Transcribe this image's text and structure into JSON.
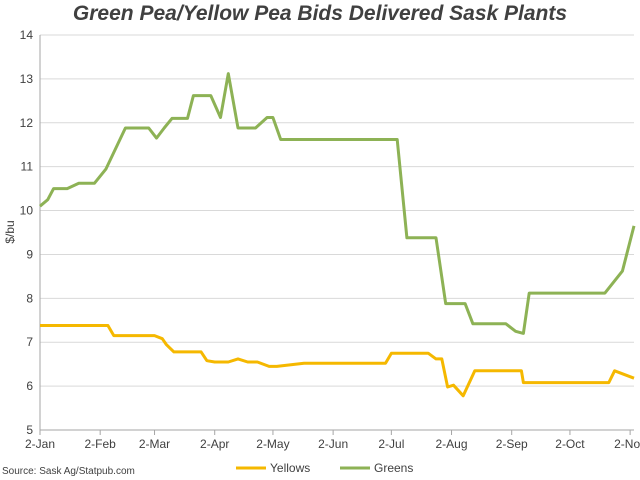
{
  "chart_data": {
    "type": "line",
    "title": "Green Pea/Yellow Pea Bids Delivered Sask Plants",
    "xlabel": "",
    "ylabel": "$/bu",
    "ylim": [
      5,
      14
    ],
    "yticks": [
      5,
      6,
      7,
      8,
      9,
      10,
      11,
      12,
      13,
      14
    ],
    "xlim": [
      0,
      306
    ],
    "xtick_labels": [
      "2-Jan",
      "2-Feb",
      "2-Mar",
      "2-Apr",
      "2-May",
      "2-Jun",
      "2-Jul",
      "2-Aug",
      "2-Sep",
      "2-Oct",
      "2-Nov"
    ],
    "xtick_days": [
      0,
      31,
      59,
      90,
      120,
      151,
      181,
      212,
      243,
      273,
      304
    ],
    "grid": "horizontal",
    "legend": "bottom-center",
    "source": "Source: Sask Ag/Statpub.com",
    "series": [
      {
        "name": "Yellows",
        "color": "#F5B800",
        "x": [
          0,
          35,
          38,
          59,
          63,
          65,
          69,
          83,
          86,
          90,
          92,
          97,
          102,
          107,
          112,
          118,
          122,
          136,
          141,
          178,
          181,
          185,
          196,
          197,
          200,
          204,
          207,
          210,
          213,
          218,
          224,
          238,
          243,
          248,
          249,
          270,
          293,
          296,
          306
        ],
        "y": [
          7.38,
          7.38,
          7.15,
          7.15,
          7.08,
          6.95,
          6.78,
          6.78,
          6.58,
          6.55,
          6.55,
          6.55,
          6.62,
          6.55,
          6.55,
          6.45,
          6.45,
          6.52,
          6.52,
          6.52,
          6.75,
          6.75,
          6.75,
          6.75,
          6.75,
          6.62,
          6.62,
          5.98,
          6.02,
          5.78,
          6.35,
          6.35,
          6.35,
          6.35,
          6.08,
          6.08,
          6.08,
          6.35,
          6.18
        ]
      },
      {
        "name": "Greens",
        "color": "#8DB255",
        "x": [
          0,
          4,
          7,
          11,
          14,
          20,
          24,
          28,
          34,
          44,
          48,
          52,
          56,
          60,
          64,
          68,
          76,
          79,
          83,
          88,
          93,
          97,
          102,
          108,
          111,
          117,
          120,
          124,
          129,
          137,
          141,
          178,
          181,
          184,
          189,
          204,
          209,
          213,
          219,
          223,
          238,
          240,
          245,
          249,
          252,
          272,
          291,
          300,
          306
        ],
        "y": [
          10.1,
          10.25,
          10.5,
          10.5,
          10.5,
          10.62,
          10.62,
          10.62,
          10.95,
          11.88,
          11.88,
          11.88,
          11.88,
          11.65,
          11.88,
          12.1,
          12.1,
          12.62,
          12.62,
          12.62,
          12.12,
          13.12,
          11.88,
          11.88,
          11.88,
          12.12,
          12.12,
          11.62,
          11.62,
          11.62,
          11.62,
          11.62,
          11.62,
          11.62,
          9.38,
          9.38,
          7.88,
          7.88,
          7.88,
          7.42,
          7.42,
          7.42,
          7.25,
          7.2,
          8.12,
          8.12,
          8.12,
          8.62,
          9.65
        ]
      }
    ]
  }
}
